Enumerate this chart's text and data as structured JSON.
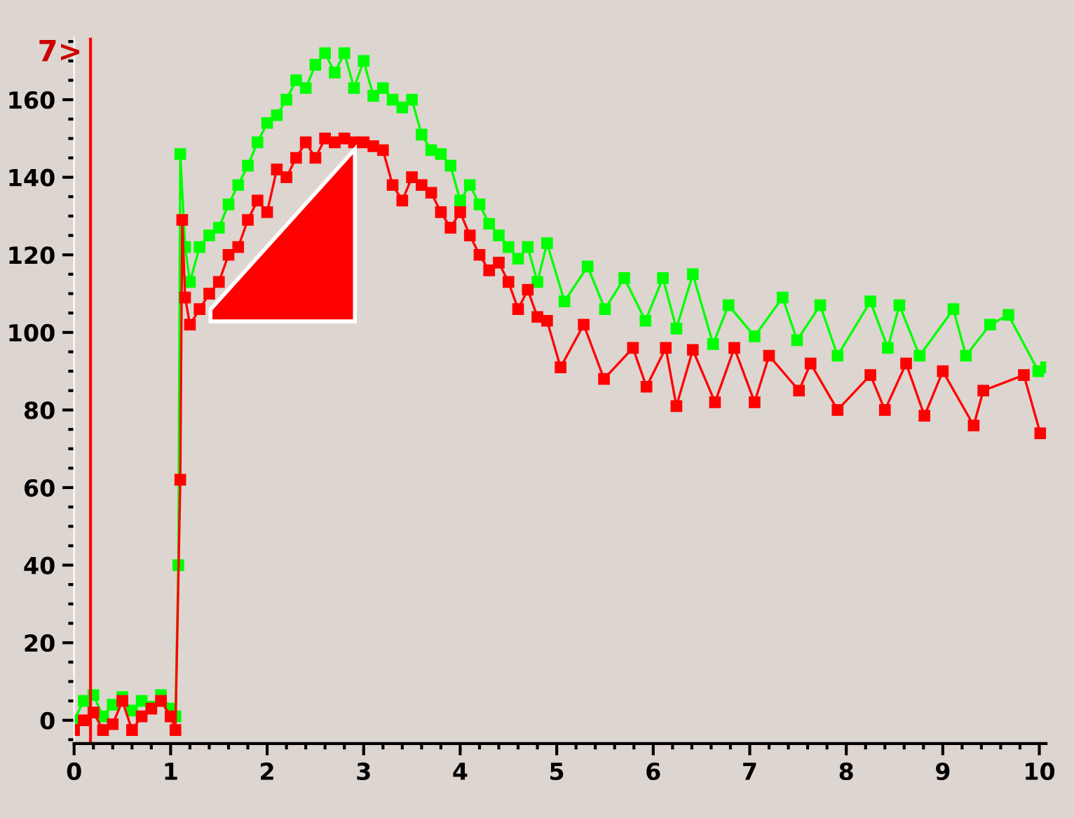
{
  "chart_data": {
    "type": "line",
    "marker": "square",
    "line_style": "solid",
    "grid": false,
    "xlim": [
      0,
      10.07
    ],
    "xticks": [
      0,
      1,
      2,
      3,
      4,
      5,
      6,
      7,
      8,
      9,
      10
    ],
    "ylim": [
      -6,
      176
    ],
    "yticks": [
      0,
      20,
      40,
      60,
      80,
      100,
      120,
      140,
      160
    ],
    "annotations": [
      "7>"
    ],
    "ref_lines": [
      {
        "axis": "x",
        "value": 0.17,
        "color": "#ff0000",
        "line_style": "solid"
      }
    ],
    "series": [
      {
        "color": "#00ff00",
        "x": [
          0,
          0.1,
          0.2,
          0.3,
          0.4,
          0.5,
          0.6,
          0.7,
          0.8,
          0.9,
          1.0,
          1.05,
          1.08,
          1.1,
          1.15,
          1.2,
          1.3,
          1.4,
          1.5,
          1.6,
          1.7,
          1.8,
          1.9,
          2.0,
          2.1,
          2.2,
          2.3,
          2.4,
          2.5,
          2.6,
          2.7,
          2.8,
          2.9,
          3.0,
          3.1,
          3.2,
          3.3,
          3.4,
          3.5,
          3.6,
          3.7,
          3.8,
          3.9,
          4.0,
          4.1,
          4.2,
          4.3,
          4.4,
          4.5,
          4.6,
          4.7,
          4.8,
          4.9,
          5.08,
          5.32,
          5.5,
          5.7,
          5.92,
          6.1,
          6.24,
          6.41,
          6.62,
          6.78,
          7.05,
          7.34,
          7.49,
          7.73,
          7.91,
          8.25,
          8.43,
          8.55,
          8.76,
          9.11,
          9.24,
          9.49,
          9.68,
          9.99,
          10.07
        ],
        "values": [
          0,
          5,
          6.5,
          1,
          4,
          6,
          2.5,
          5,
          3.5,
          6.5,
          3,
          1,
          40,
          146,
          122,
          113,
          122,
          125,
          127,
          133,
          138,
          143,
          149,
          154,
          156,
          160,
          165,
          163,
          169,
          172,
          167,
          172,
          163,
          170,
          161,
          163,
          160,
          158,
          160,
          151,
          147,
          146,
          143,
          134,
          138,
          133,
          128,
          125,
          122,
          119,
          122,
          113,
          123,
          108,
          117,
          106,
          114,
          103,
          114,
          101,
          115,
          97,
          107,
          99,
          109,
          98,
          107,
          94,
          108,
          96,
          107,
          94,
          106,
          94,
          102,
          104.5,
          90,
          91
        ]
      },
      {
        "color": "#ff0000",
        "x": [
          0,
          0.1,
          0.2,
          0.3,
          0.4,
          0.5,
          0.6,
          0.7,
          0.8,
          0.9,
          1.0,
          1.05,
          1.1,
          1.12,
          1.15,
          1.2,
          1.3,
          1.4,
          1.5,
          1.6,
          1.7,
          1.8,
          1.9,
          2.0,
          2.1,
          2.2,
          2.3,
          2.4,
          2.5,
          2.6,
          2.7,
          2.8,
          2.9,
          3.0,
          3.1,
          3.2,
          3.3,
          3.4,
          3.5,
          3.6,
          3.7,
          3.8,
          3.9,
          4.0,
          4.1,
          4.2,
          4.3,
          4.4,
          4.5,
          4.6,
          4.7,
          4.8,
          4.9,
          5.04,
          5.28,
          5.49,
          5.79,
          5.93,
          6.13,
          6.24,
          6.41,
          6.64,
          6.84,
          7.05,
          7.2,
          7.51,
          7.63,
          7.91,
          8.25,
          8.4,
          8.62,
          8.81,
          9.0,
          9.32,
          9.42,
          9.84,
          10.01
        ],
        "values": [
          -2.5,
          0,
          2,
          -2.5,
          -1,
          5,
          -2.5,
          1,
          3,
          5,
          1,
          -2.5,
          62,
          129,
          109,
          102,
          106,
          110,
          113,
          120,
          122,
          129,
          134,
          131,
          142,
          140,
          145,
          149,
          145,
          150,
          149,
          150,
          149,
          149,
          148,
          147,
          138,
          134,
          140,
          138,
          136,
          131,
          127,
          131,
          125,
          120,
          116,
          118,
          113,
          106,
          111,
          104,
          103,
          91,
          102,
          88,
          96,
          86,
          96,
          81,
          95.5,
          82,
          96,
          82,
          94,
          85,
          92,
          80,
          89,
          80,
          92,
          78.5,
          90,
          76,
          85,
          89,
          74
        ]
      }
    ]
  }
}
